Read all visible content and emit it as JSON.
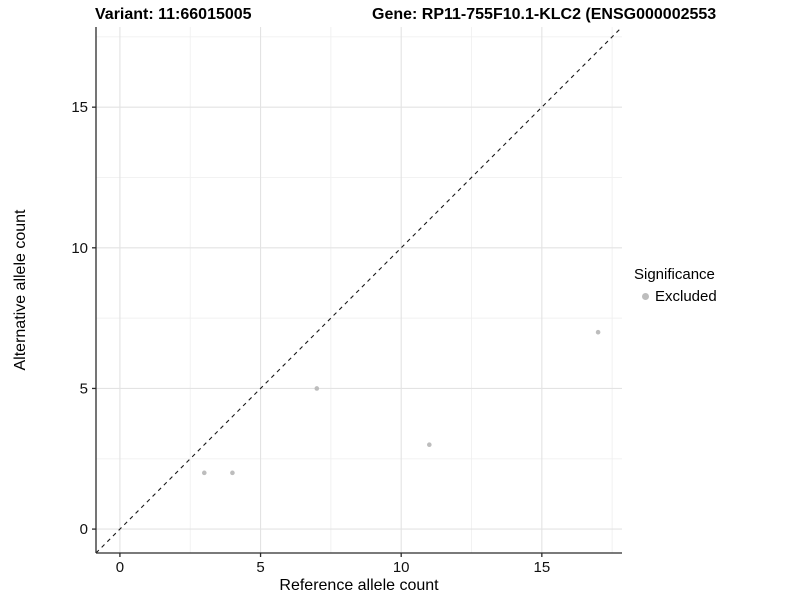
{
  "chart_data": {
    "type": "scatter",
    "title_left": "Variant: 11:66015005",
    "title_right": "Gene: RP11-755F10.1-KLC2 (ENSG000002553",
    "xlabel": "Reference allele count",
    "ylabel": "Alternative allele count",
    "xlim": [
      -0.85,
      17.85
    ],
    "ylim": [
      -0.85,
      17.85
    ],
    "x_major_ticks": [
      0,
      5,
      10,
      15
    ],
    "y_major_ticks": [
      0,
      5,
      10,
      15
    ],
    "x_minor_gridlines": [
      2.5,
      7.5,
      12.5,
      17.5
    ],
    "y_minor_gridlines": [
      2.5,
      7.5,
      12.5,
      17.5
    ],
    "grid": "major and minor, light gray on white panel",
    "reference_line": {
      "kind": "identity",
      "slope": 1,
      "intercept": 0,
      "linestyle": "dashed",
      "color": "#1a1a1a"
    },
    "series": [
      {
        "name": "Excluded",
        "marker": "circle",
        "color": "#bdbdbd",
        "points": [
          [
            3,
            2
          ],
          [
            4,
            2
          ],
          [
            7,
            5
          ],
          [
            11,
            3
          ],
          [
            17,
            7
          ]
        ]
      }
    ],
    "legend": {
      "title": "Significance",
      "position": "right-middle",
      "items": [
        {
          "label": "Excluded",
          "marker": "circle",
          "color": "#bdbdbd"
        }
      ]
    },
    "colors": {
      "background": "#ffffff",
      "point_gray": "#bdbdbd",
      "grid_major": "#e3e3e3",
      "grid_minor": "#f0f0f0",
      "axis": "#2b2b2b",
      "text": "#000000"
    }
  }
}
